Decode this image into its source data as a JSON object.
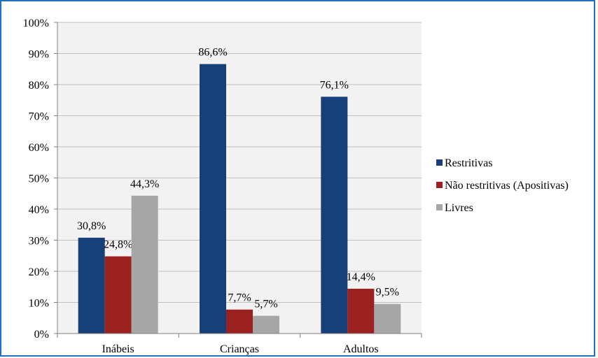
{
  "chart_data": {
    "type": "bar",
    "categories": [
      "Inábeis",
      "Crianças",
      "Adultos"
    ],
    "series": [
      {
        "name": "Restritivas",
        "color": "#17407a",
        "values": [
          30.8,
          86.6,
          76.1
        ],
        "labels": [
          "30,8%",
          "86,6%",
          "76,1%"
        ]
      },
      {
        "name": "Não restritivas (Apositivas)",
        "color": "#9b2020",
        "values": [
          24.8,
          7.7,
          14.4
        ],
        "labels": [
          "24,8%",
          "7,7%",
          "14,4%"
        ]
      },
      {
        "name": "Livres",
        "color": "#a6a6a6",
        "values": [
          44.3,
          5.7,
          9.5
        ],
        "labels": [
          "44,3%",
          "5,7%",
          "9,5%"
        ]
      }
    ],
    "y_ticks": [
      "0%",
      "10%",
      "20%",
      "30%",
      "40%",
      "50%",
      "60%",
      "70%",
      "80%",
      "90%",
      "100%"
    ],
    "ylim": [
      0,
      100
    ],
    "grid": true,
    "legend_position": "right",
    "plot_background": "#f2f2f2",
    "gridline_color": "#bfbfbf"
  }
}
